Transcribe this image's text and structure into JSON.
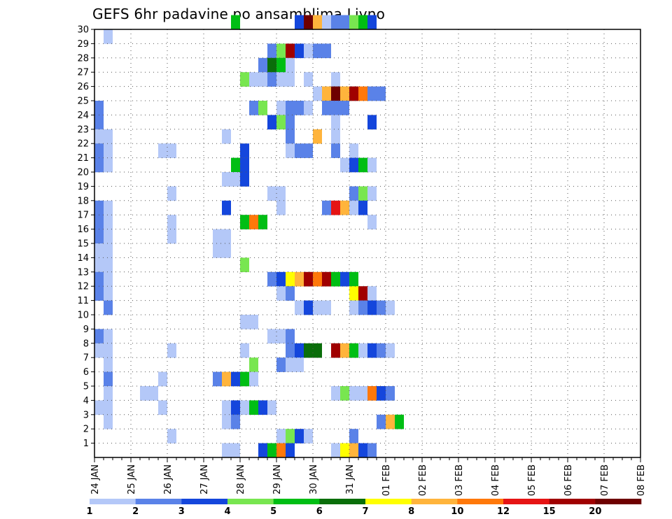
{
  "chart_data": {
    "type": "heatmap",
    "title": "GEFS 6hr padavine po ansamblima Livno",
    "xlabel": "",
    "ylabel": "",
    "x_ticks": [
      "24 JAN",
      "25 JAN",
      "26 JAN",
      "27 JAN",
      "28 JAN",
      "29 JAN",
      "30 JAN",
      "31 JAN",
      "01 FEB",
      "02 FEB",
      "03 FEB",
      "04 FEB",
      "05 FEB",
      "06 FEB",
      "07 FEB",
      "08 FEB"
    ],
    "x_range": [
      "24 JAN 00Z",
      "08 FEB 00Z"
    ],
    "time_step_hours": 6,
    "y_ticks": [
      1,
      2,
      3,
      4,
      5,
      6,
      7,
      8,
      9,
      10,
      11,
      12,
      13,
      14,
      15,
      16,
      17,
      18,
      19,
      20,
      21,
      22,
      23,
      24,
      25,
      26,
      27,
      28,
      29,
      30
    ],
    "y_range": [
      0,
      30
    ],
    "grid": true,
    "legend": {
      "placement": "bottom",
      "labels": [
        "1",
        "2",
        "3",
        "4",
        "5",
        "6",
        "7",
        "8",
        "10",
        "12",
        "15",
        "20"
      ],
      "colors": [
        "#b4c8f8",
        "#5a82e8",
        "#1446dc",
        "#78e650",
        "#00be14",
        "#0a6e0a",
        "#ffff00",
        "#ffb43c",
        "#ff780a",
        "#e61414",
        "#a00000",
        "#6e0000"
      ]
    },
    "color_scale": [
      {
        "upper": 2,
        "color": "#b4c8f8"
      },
      {
        "upper": 3,
        "color": "#5a82e8"
      },
      {
        "upper": 4,
        "color": "#1446dc"
      },
      {
        "upper": 5,
        "color": "#78e650"
      },
      {
        "upper": 6,
        "color": "#00be14"
      },
      {
        "upper": 7,
        "color": "#0a6e0a"
      },
      {
        "upper": 8,
        "color": "#ffff00"
      },
      {
        "upper": 10,
        "color": "#ffb43c"
      },
      {
        "upper": 12,
        "color": "#ff780a"
      },
      {
        "upper": 15,
        "color": "#e61414"
      },
      {
        "upper": 20,
        "color": "#a00000"
      },
      {
        "upper": 999,
        "color": "#6e0000"
      }
    ],
    "cells_note": "each cell: [member, 6-hourly step index from 24 JAN 00Z, value mm]",
    "cells": [
      [
        30,
        15,
        5.5
      ],
      [
        30,
        22,
        3.5
      ],
      [
        30,
        23,
        20.5
      ],
      [
        30,
        24,
        9.0
      ],
      [
        30,
        25,
        1.5
      ],
      [
        30,
        26,
        2.5
      ],
      [
        30,
        27,
        2.5
      ],
      [
        30,
        28,
        4.5
      ],
      [
        30,
        29,
        5.5
      ],
      [
        30,
        30,
        3.5
      ],
      [
        29,
        1,
        1.5
      ],
      [
        28,
        19,
        2.5
      ],
      [
        28,
        20,
        4.5
      ],
      [
        28,
        21,
        16.0
      ],
      [
        28,
        22,
        3.5
      ],
      [
        28,
        23,
        1.5
      ],
      [
        28,
        24,
        2.5
      ],
      [
        28,
        25,
        2.5
      ],
      [
        27,
        18,
        2.5
      ],
      [
        27,
        19,
        6.5
      ],
      [
        27,
        20,
        5.5
      ],
      [
        27,
        21,
        1.5
      ],
      [
        26,
        16,
        4.5
      ],
      [
        26,
        17,
        1.5
      ],
      [
        26,
        18,
        1.5
      ],
      [
        26,
        19,
        2.5
      ],
      [
        26,
        20,
        1.5
      ],
      [
        26,
        21,
        1.5
      ],
      [
        26,
        23,
        1.5
      ],
      [
        26,
        26,
        1.5
      ],
      [
        25,
        24,
        1.5
      ],
      [
        25,
        25,
        9.0
      ],
      [
        25,
        26,
        25.0
      ],
      [
        25,
        27,
        9.0
      ],
      [
        25,
        28,
        17.0
      ],
      [
        25,
        29,
        11.0
      ],
      [
        25,
        30,
        2.5
      ],
      [
        25,
        31,
        2.5
      ],
      [
        24,
        0,
        2.5
      ],
      [
        24,
        17,
        2.5
      ],
      [
        24,
        18,
        4.5
      ],
      [
        24,
        20,
        1.5
      ],
      [
        24,
        21,
        2.5
      ],
      [
        24,
        22,
        2.5
      ],
      [
        24,
        23,
        1.5
      ],
      [
        24,
        25,
        2.5
      ],
      [
        24,
        26,
        2.5
      ],
      [
        24,
        27,
        2.5
      ],
      [
        23,
        0,
        2.5
      ],
      [
        23,
        19,
        3.5
      ],
      [
        23,
        20,
        4.5
      ],
      [
        23,
        21,
        2.5
      ],
      [
        23,
        26,
        1.5
      ],
      [
        23,
        30,
        3.5
      ],
      [
        22,
        0,
        1.5
      ],
      [
        22,
        1,
        1.5
      ],
      [
        22,
        14,
        1.5
      ],
      [
        22,
        21,
        2.5
      ],
      [
        22,
        24,
        9.0
      ],
      [
        22,
        26,
        1.5
      ],
      [
        21,
        0,
        2.5
      ],
      [
        21,
        1,
        1.5
      ],
      [
        21,
        7,
        1.5
      ],
      [
        21,
        8,
        1.5
      ],
      [
        21,
        16,
        3.5
      ],
      [
        21,
        21,
        1.5
      ],
      [
        21,
        22,
        2.5
      ],
      [
        21,
        23,
        2.5
      ],
      [
        21,
        26,
        2.5
      ],
      [
        21,
        28,
        1.5
      ],
      [
        20,
        0,
        2.5
      ],
      [
        20,
        1,
        1.5
      ],
      [
        20,
        15,
        5.5
      ],
      [
        20,
        16,
        3.5
      ],
      [
        20,
        27,
        1.5
      ],
      [
        20,
        28,
        3.5
      ],
      [
        20,
        29,
        5.5
      ],
      [
        20,
        30,
        1.5
      ],
      [
        19,
        14,
        1.5
      ],
      [
        19,
        15,
        1.5
      ],
      [
        19,
        16,
        3.5
      ],
      [
        18,
        8,
        1.5
      ],
      [
        18,
        19,
        1.5
      ],
      [
        18,
        20,
        1.5
      ],
      [
        18,
        28,
        2.5
      ],
      [
        18,
        29,
        4.5
      ],
      [
        18,
        30,
        1.5
      ],
      [
        17,
        -0.5,
        1.5
      ],
      [
        17,
        0,
        2.5
      ],
      [
        17,
        1,
        1.5
      ],
      [
        17,
        14,
        3.5
      ],
      [
        17,
        20,
        1.5
      ],
      [
        17,
        25,
        2.5
      ],
      [
        17,
        26,
        14.0
      ],
      [
        17,
        27,
        9.0
      ],
      [
        17,
        28,
        1.5
      ],
      [
        17,
        29,
        3.5
      ],
      [
        16,
        0,
        2.5
      ],
      [
        16,
        1,
        1.5
      ],
      [
        16,
        8,
        1.5
      ],
      [
        16,
        16,
        5.5
      ],
      [
        16,
        17,
        11.0
      ],
      [
        16,
        18,
        5.5
      ],
      [
        16,
        30,
        1.5
      ],
      [
        15,
        0,
        2.5
      ],
      [
        15,
        1,
        1.5
      ],
      [
        15,
        8,
        1.5
      ],
      [
        15,
        13,
        1.5
      ],
      [
        15,
        14,
        1.5
      ],
      [
        14,
        0,
        1.5
      ],
      [
        14,
        1,
        1.5
      ],
      [
        14,
        13,
        1.5
      ],
      [
        14,
        14,
        1.5
      ],
      [
        13,
        0,
        1.5
      ],
      [
        13,
        1,
        1.5
      ],
      [
        13,
        16,
        4.5
      ],
      [
        12,
        0,
        2.5
      ],
      [
        12,
        1,
        1.5
      ],
      [
        12,
        19,
        2.5
      ],
      [
        12,
        20,
        3.5
      ],
      [
        12,
        21,
        7.5
      ],
      [
        12,
        22,
        9.0
      ],
      [
        12,
        23,
        17.0
      ],
      [
        12,
        24,
        11.0
      ],
      [
        12,
        25,
        15.0
      ],
      [
        12,
        26,
        5.5
      ],
      [
        12,
        27,
        3.5
      ],
      [
        12,
        28,
        5.5
      ],
      [
        11,
        0,
        2.5
      ],
      [
        11,
        1,
        1.5
      ],
      [
        11,
        20,
        1.5
      ],
      [
        11,
        21,
        2.5
      ],
      [
        11,
        28,
        7.5
      ],
      [
        11,
        29,
        18.0
      ],
      [
        11,
        30,
        1.5
      ],
      [
        10,
        1,
        2.5
      ],
      [
        10,
        22,
        1.5
      ],
      [
        10,
        23,
        3.5
      ],
      [
        10,
        24,
        1.5
      ],
      [
        10,
        25,
        1.5
      ],
      [
        10,
        28,
        1.5
      ],
      [
        10,
        29,
        2.5
      ],
      [
        10,
        30,
        3.5
      ],
      [
        10,
        31,
        2.5
      ],
      [
        10,
        32,
        1.5
      ],
      [
        9,
        16,
        1.5
      ],
      [
        9,
        17,
        1.5
      ],
      [
        8,
        -0.5,
        1.5
      ],
      [
        8,
        0,
        2.5
      ],
      [
        8,
        1,
        1.5
      ],
      [
        8,
        19,
        1.5
      ],
      [
        8,
        20,
        1.5
      ],
      [
        8,
        21,
        2.5
      ],
      [
        7,
        0,
        1.5
      ],
      [
        7,
        1,
        1.5
      ],
      [
        7,
        8,
        1.5
      ],
      [
        7,
        16,
        1.5
      ],
      [
        7,
        21,
        2.5
      ],
      [
        7,
        22,
        3.5
      ],
      [
        7,
        23,
        6.5
      ],
      [
        7,
        24,
        6.5
      ],
      [
        7,
        26,
        17.0
      ],
      [
        7,
        27,
        9.0
      ],
      [
        7,
        28,
        5.5
      ],
      [
        7,
        29,
        1.5
      ],
      [
        7,
        30,
        3.5
      ],
      [
        7,
        31,
        2.5
      ],
      [
        7,
        32,
        1.5
      ],
      [
        6,
        1,
        1.5
      ],
      [
        6,
        17,
        4.5
      ],
      [
        6,
        20,
        2.5
      ],
      [
        6,
        21,
        1.5
      ],
      [
        6,
        22,
        1.5
      ],
      [
        5,
        1,
        2.5
      ],
      [
        5,
        7,
        1.5
      ],
      [
        5,
        13,
        2.5
      ],
      [
        5,
        14,
        9.0
      ],
      [
        5,
        15,
        3.5
      ],
      [
        5,
        16,
        5.5
      ],
      [
        5,
        17,
        1.5
      ],
      [
        4,
        1,
        1.5
      ],
      [
        4,
        5,
        1.5
      ],
      [
        4,
        6,
        1.5
      ],
      [
        4,
        26,
        1.5
      ],
      [
        4,
        27,
        4.5
      ],
      [
        4,
        28,
        1.5
      ],
      [
        4,
        29,
        1.5
      ],
      [
        4,
        30,
        11.0
      ],
      [
        4,
        31,
        3.5
      ],
      [
        4,
        32,
        2.5
      ],
      [
        3,
        0,
        1.5
      ],
      [
        3,
        1,
        1.5
      ],
      [
        3,
        7,
        1.5
      ],
      [
        3,
        14,
        1.5
      ],
      [
        3,
        15,
        3.5
      ],
      [
        3,
        16,
        1.5
      ],
      [
        3,
        17,
        5.5
      ],
      [
        3,
        18,
        3.5
      ],
      [
        3,
        19,
        1.5
      ],
      [
        2,
        1,
        1.5
      ],
      [
        2,
        14,
        1.5
      ],
      [
        2,
        15,
        2.5
      ],
      [
        2,
        31,
        2.5
      ],
      [
        2,
        32,
        9.0
      ],
      [
        2,
        33,
        5.5
      ],
      [
        1,
        8,
        1.5
      ],
      [
        1,
        20,
        1.5
      ],
      [
        1,
        21,
        4.5
      ],
      [
        1,
        22,
        3.5
      ],
      [
        1,
        23,
        1.5
      ],
      [
        1,
        28,
        2.5
      ],
      [
        0,
        14,
        1.5
      ],
      [
        0,
        15,
        1.5
      ],
      [
        0,
        18,
        3.5
      ],
      [
        0,
        19,
        5.5
      ],
      [
        0,
        20,
        11.0
      ],
      [
        0,
        21,
        3.5
      ],
      [
        0,
        26,
        1.5
      ],
      [
        0,
        27,
        7.5
      ],
      [
        0,
        28,
        9.0
      ],
      [
        0,
        29,
        3.5
      ],
      [
        0,
        30,
        2.5
      ]
    ]
  }
}
